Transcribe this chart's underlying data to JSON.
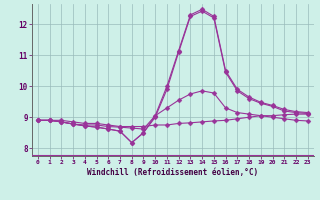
{
  "xlabel": "Windchill (Refroidissement éolien,°C)",
  "background_color": "#cef0e8",
  "grid_color": "#99bbbb",
  "line_color": "#993399",
  "xlim": [
    -0.5,
    23.5
  ],
  "ylim": [
    7.75,
    12.65
  ],
  "yticks": [
    8,
    9,
    10,
    11,
    12
  ],
  "xticks": [
    0,
    1,
    2,
    3,
    4,
    5,
    6,
    7,
    8,
    9,
    10,
    11,
    12,
    13,
    14,
    15,
    16,
    17,
    18,
    19,
    20,
    21,
    22,
    23
  ],
  "series": [
    [
      8.9,
      8.9,
      8.9,
      8.85,
      8.8,
      8.8,
      8.75,
      8.7,
      8.7,
      8.7,
      8.75,
      8.75,
      8.8,
      8.82,
      8.85,
      8.88,
      8.9,
      8.95,
      9.0,
      9.05,
      9.05,
      9.08,
      9.1,
      9.1
    ],
    [
      8.9,
      8.9,
      8.85,
      8.78,
      8.75,
      8.75,
      8.7,
      8.68,
      8.65,
      8.62,
      9.05,
      9.3,
      9.55,
      9.75,
      9.85,
      9.78,
      9.3,
      9.15,
      9.1,
      9.05,
      9.0,
      8.95,
      8.9,
      8.88
    ],
    [
      8.9,
      8.9,
      8.85,
      8.78,
      8.72,
      8.68,
      8.62,
      8.55,
      8.18,
      8.5,
      9.0,
      9.9,
      11.1,
      12.25,
      12.42,
      12.2,
      10.45,
      9.85,
      9.6,
      9.45,
      9.35,
      9.2,
      9.15,
      9.12
    ],
    [
      8.9,
      8.9,
      8.85,
      8.78,
      8.72,
      8.68,
      8.62,
      8.55,
      8.18,
      8.5,
      9.05,
      10.0,
      11.15,
      12.3,
      12.48,
      12.25,
      10.5,
      9.9,
      9.65,
      9.48,
      9.38,
      9.25,
      9.18,
      9.15
    ]
  ],
  "marker": "D",
  "markersize": 2.5,
  "linewidth": 0.8,
  "spine_color": "#666666",
  "tick_color": "#660066",
  "xlabel_color": "#440044",
  "xlabel_fontsize": 5.5,
  "xtick_fontsize": 4.5,
  "ytick_fontsize": 5.5
}
